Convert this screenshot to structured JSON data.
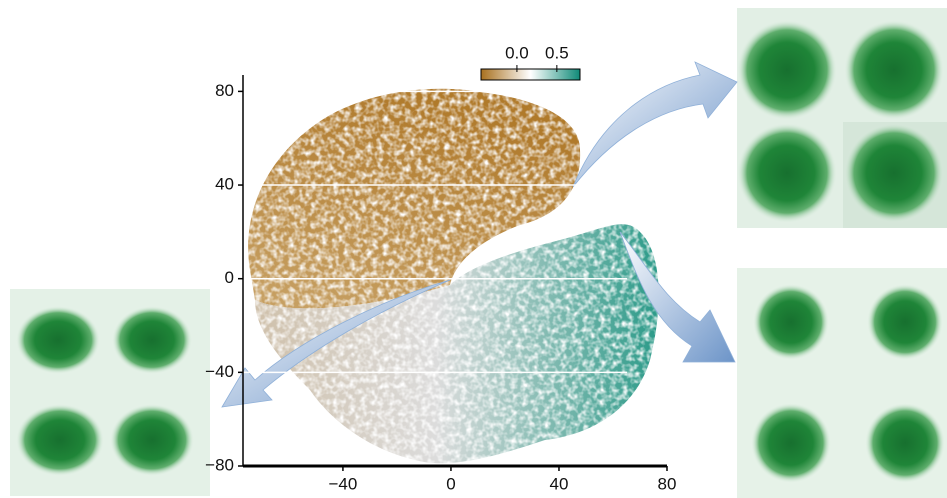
{
  "chart_data": {
    "type": "scatter",
    "xlim": [
      -77,
      80
    ],
    "ylim": [
      -80,
      87
    ],
    "xticks": [
      {
        "value": -40,
        "label": "−40"
      },
      0,
      40,
      80
    ],
    "yticks": [
      {
        "value": -80,
        "label": "−80"
      },
      {
        "value": -40,
        "label": "−40"
      },
      0,
      40,
      80
    ],
    "grid": true,
    "colorbar": {
      "lim": [
        -0.45,
        0.79
      ],
      "ticks": [
        {
          "value": 0,
          "label": "0.0"
        },
        0.5
      ],
      "colors": [
        "#a8701e",
        "#ffffff",
        "#0f8a78"
      ]
    }
  }
}
